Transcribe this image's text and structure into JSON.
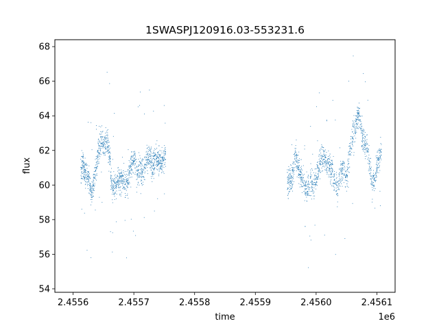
{
  "chart_data": {
    "type": "scatter",
    "title": "1SWASPJ120916.03-553231.6",
    "xlabel": "time",
    "ylabel": "flux",
    "x_offset_label": "1e6",
    "xlim": [
      2.45557,
      2.45613
    ],
    "ylim": [
      53.8,
      68.4
    ],
    "x_ticks": [
      2.4556,
      2.4557,
      2.4558,
      2.4559,
      2.456,
      2.4561
    ],
    "x_tick_labels": [
      "2.4556",
      "2.4557",
      "2.4558",
      "2.4559",
      "2.4560",
      "2.4561"
    ],
    "y_ticks": [
      54,
      56,
      58,
      60,
      62,
      64,
      66,
      68
    ],
    "y_tick_labels": [
      "54",
      "56",
      "58",
      "60",
      "62",
      "64",
      "66",
      "68"
    ],
    "grid": false,
    "legend": "none",
    "marker_color": "#1f77b4",
    "segments": [
      {
        "time_range": [
          2.455612,
          2.455752
        ],
        "flux_profile": [
          [
            2.455612,
            60.8
          ],
          [
            2.455615,
            61.3
          ],
          [
            2.45562,
            60.6
          ],
          [
            2.455625,
            60.3
          ],
          [
            2.45563,
            59.5
          ],
          [
            2.455635,
            60.4
          ],
          [
            2.45564,
            61.7
          ],
          [
            2.455645,
            62.6
          ],
          [
            2.45565,
            62.2
          ],
          [
            2.455655,
            62.5
          ],
          [
            2.45566,
            61.6
          ],
          [
            2.455662,
            60.2
          ],
          [
            2.455665,
            59.8
          ],
          [
            2.45567,
            60.1
          ],
          [
            2.455675,
            60.3
          ],
          [
            2.45568,
            60.5
          ],
          [
            2.455685,
            60.0
          ],
          [
            2.45569,
            60.3
          ],
          [
            2.455695,
            61.2
          ],
          [
            2.4557,
            61.6
          ],
          [
            2.455705,
            60.6
          ],
          [
            2.45571,
            61.0
          ],
          [
            2.455715,
            60.8
          ],
          [
            2.45572,
            61.4
          ],
          [
            2.455725,
            61.8
          ],
          [
            2.45573,
            61.0
          ],
          [
            2.455735,
            61.6
          ],
          [
            2.45574,
            61.5
          ],
          [
            2.455745,
            61.3
          ],
          [
            2.455752,
            61.7
          ]
        ]
      },
      {
        "time_range": [
          2.455952,
          2.456107
        ],
        "flux_profile": [
          [
            2.455952,
            60.2
          ],
          [
            2.45596,
            60.4
          ],
          [
            2.455965,
            61.8
          ],
          [
            2.45597,
            61.0
          ],
          [
            2.455975,
            60.6
          ],
          [
            2.45598,
            60.0
          ],
          [
            2.455985,
            59.8
          ],
          [
            2.45599,
            60.3
          ],
          [
            2.455995,
            60.0
          ],
          [
            2.456,
            60.4
          ],
          [
            2.456005,
            61.2
          ],
          [
            2.45601,
            61.7
          ],
          [
            2.456015,
            61.4
          ],
          [
            2.45602,
            61.2
          ],
          [
            2.456025,
            60.9
          ],
          [
            2.45603,
            60.2
          ],
          [
            2.456035,
            59.8
          ],
          [
            2.45604,
            60.7
          ],
          [
            2.456045,
            61.0
          ],
          [
            2.45605,
            60.4
          ],
          [
            2.456055,
            62.0
          ],
          [
            2.45606,
            63.0
          ],
          [
            2.456065,
            63.6
          ],
          [
            2.45607,
            64.2
          ],
          [
            2.456075,
            63.0
          ],
          [
            2.45608,
            62.4
          ],
          [
            2.456085,
            61.8
          ],
          [
            2.45609,
            60.5
          ],
          [
            2.456095,
            60.2
          ],
          [
            2.4561,
            61.2
          ],
          [
            2.456107,
            62.0
          ]
        ]
      }
    ]
  }
}
